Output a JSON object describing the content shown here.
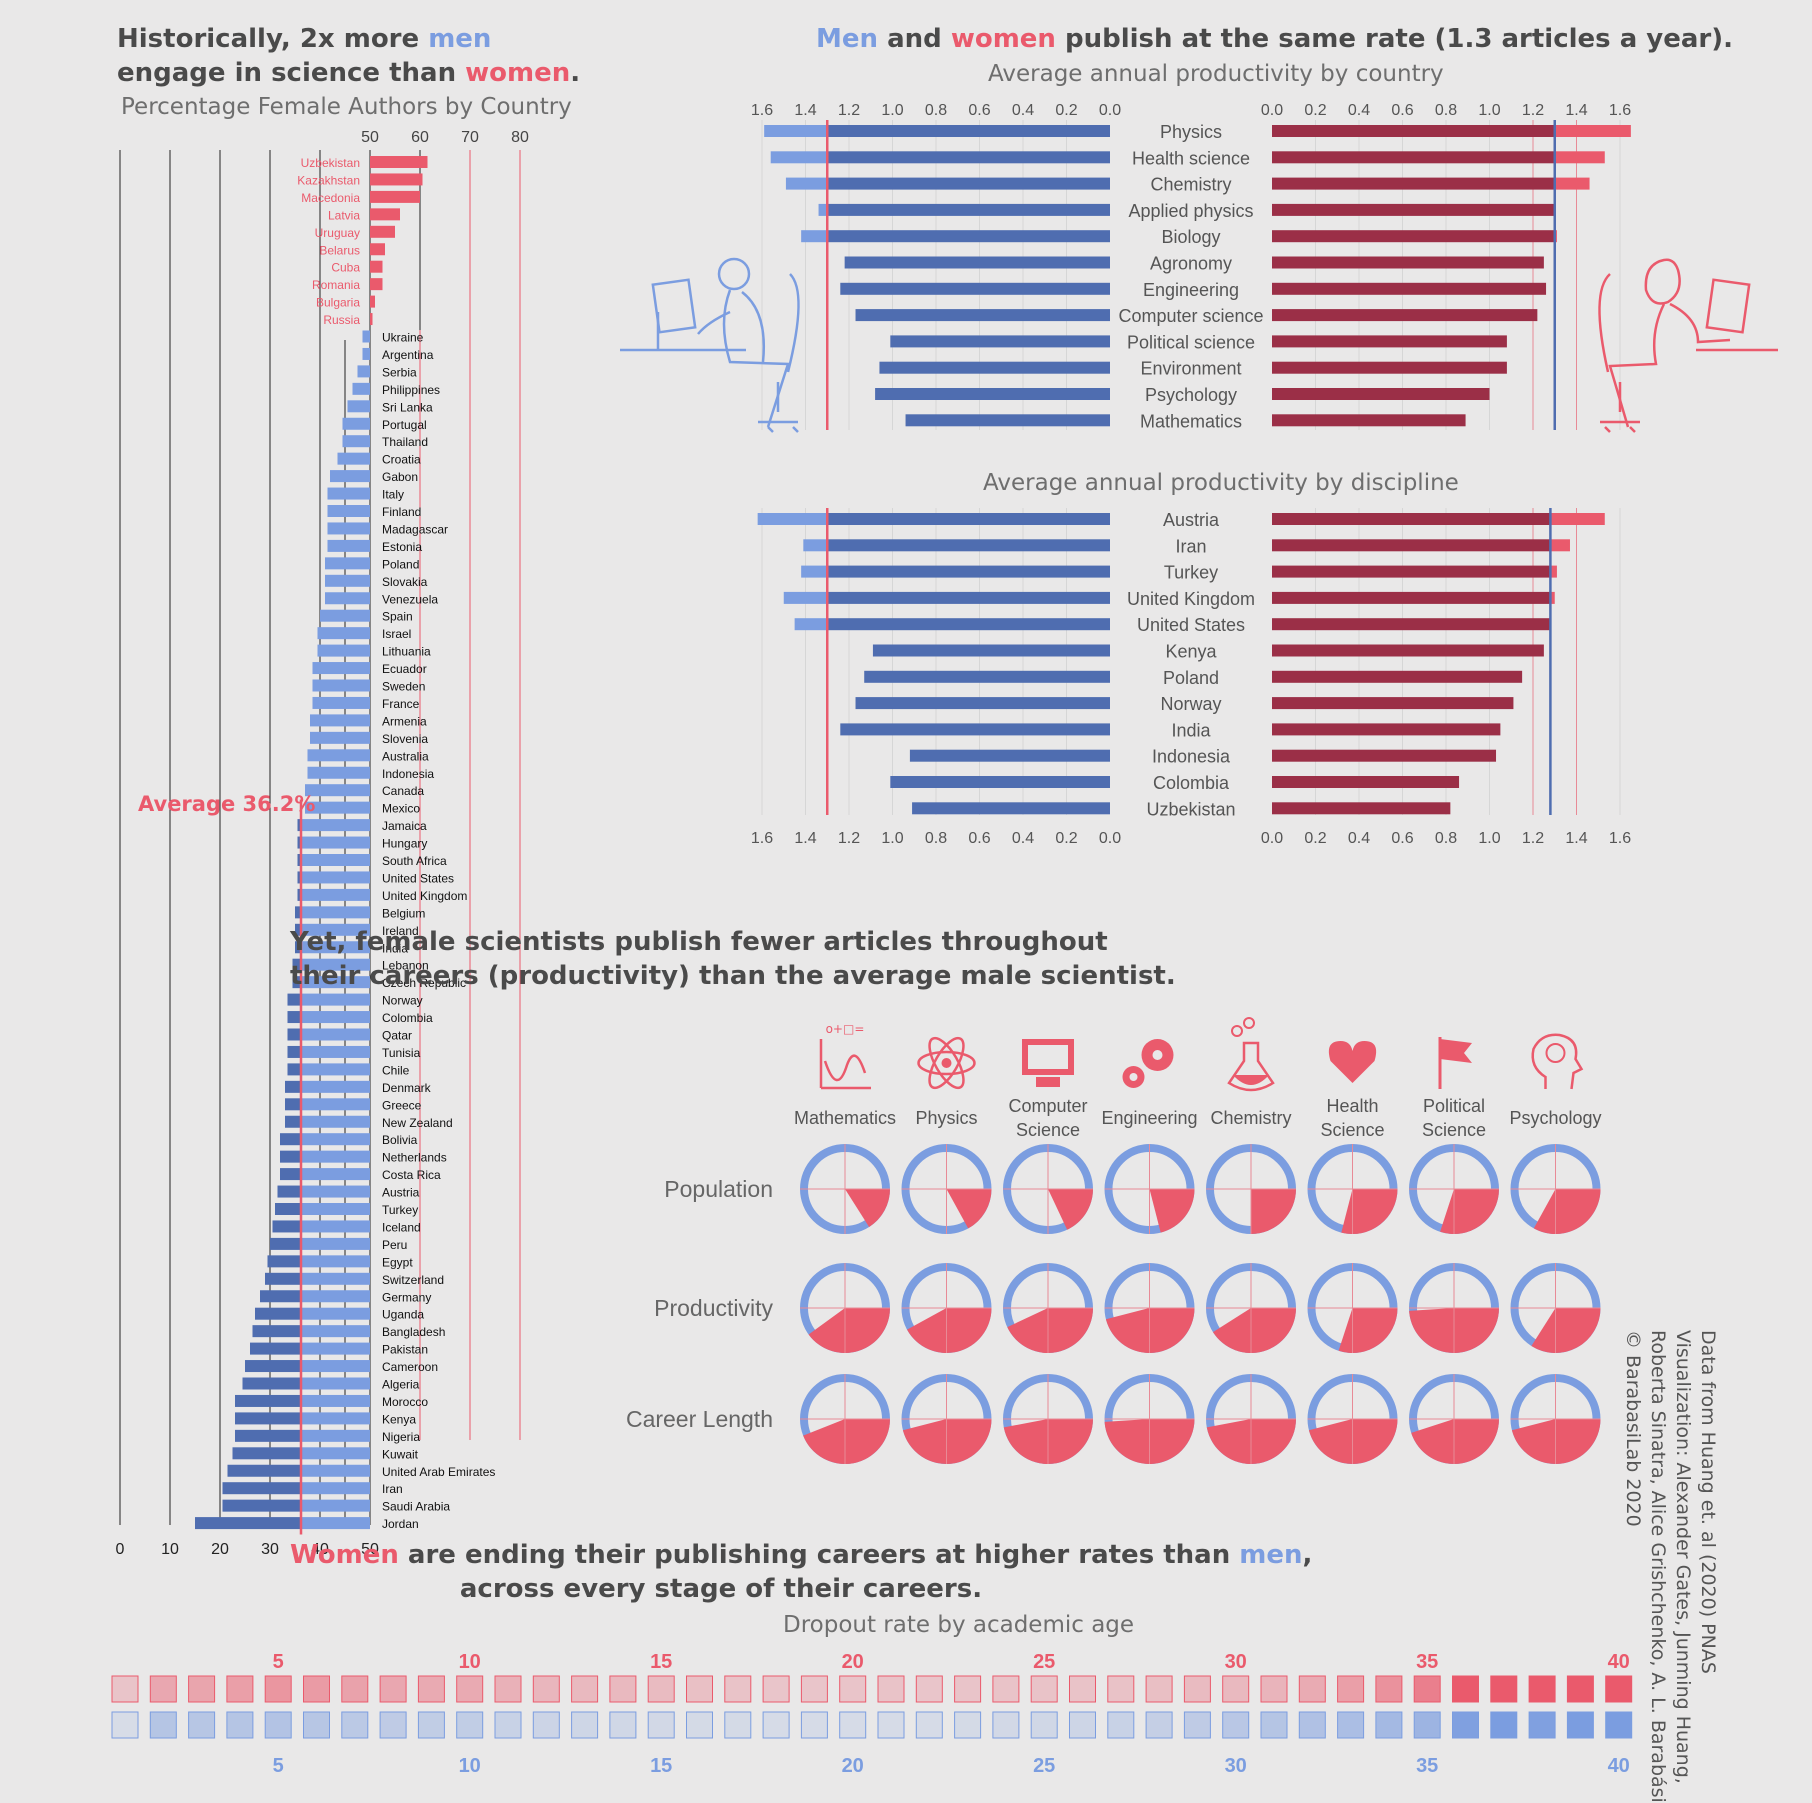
{
  "colors": {
    "men": "#7b9de0",
    "men_dark": "#4f6db0",
    "women": "#ea5a6c",
    "women_dark": "#9b2f47",
    "bg": "#e9e8e8",
    "text": "#4a4a4a"
  },
  "left_panel": {
    "headline_line1_pre": "Historically, 2x more ",
    "headline_men": "men",
    "headline_line2_pre": "engage in science than ",
    "headline_women": "women",
    "headline_period": ".",
    "subtitle": "Percentage Female Authors by Country",
    "average_label": "Average 36.2%"
  },
  "top_headline": {
    "men": "Men",
    "and": " and ",
    "women": "women",
    "rest": " publish at the same rate (1.3 articles a year)."
  },
  "middle_headline": {
    "line1": "Yet, female scientists publish fewer articles throughout",
    "line2": "their careers (productivity) than the average male scientist."
  },
  "bottom_headline": {
    "women": "Women",
    "rest1": " are ending their publishing careers at higher rates than ",
    "men": "men",
    "rest1_end": ",",
    "line2": "across every stage of their careers.",
    "subtitle": "Dropout rate by academic age"
  },
  "credits": [
    "Data from Huang et. al (2020) PNAS",
    "Visualization: Alexander Gates, Junming Huang,",
    "Roberta Sinatra, Alice Grishchenko, A. L. Barabási",
    "© BarabasiLab 2020"
  ],
  "chart_data": [
    {
      "type": "bar",
      "title": "Percentage Female Authors by Country",
      "orientation": "horizontal",
      "average": 36.2,
      "xticks_top": [
        50,
        60,
        70,
        80
      ],
      "xticks_bottom": [
        0,
        10,
        20,
        30,
        40,
        50
      ],
      "xlim": [
        0,
        80
      ],
      "categories": [
        "Uzbekistan",
        "Kazakhstan",
        "Macedonia",
        "Latvia",
        "Uruguay",
        "Belarus",
        "Cuba",
        "Romania",
        "Bulgaria",
        "Russia",
        "Ukraine",
        "Argentina",
        "Serbia",
        "Philippines",
        "Sri Lanka",
        "Portugal",
        "Thailand",
        "Croatia",
        "Gabon",
        "Italy",
        "Finland",
        "Madagascar",
        "Estonia",
        "Poland",
        "Slovakia",
        "Venezuela",
        "Spain",
        "Israel",
        "Lithuania",
        "Ecuador",
        "Sweden",
        "France",
        "Armenia",
        "Slovenia",
        "Australia",
        "Indonesia",
        "Canada",
        "Mexico",
        "Jamaica",
        "Hungary",
        "South Africa",
        "United States",
        "United Kingdom",
        "Belgium",
        "Ireland",
        "India",
        "Lebanon",
        "Czech Republic",
        "Norway",
        "Colombia",
        "Qatar",
        "Tunisia",
        "Chile",
        "Denmark",
        "Greece",
        "New Zealand",
        "Bolivia",
        "Netherlands",
        "Costa Rica",
        "Austria",
        "Turkey",
        "Iceland",
        "Peru",
        "Egypt",
        "Switzerland",
        "Germany",
        "Uganda",
        "Bangladesh",
        "Pakistan",
        "Cameroon",
        "Algeria",
        "Morocco",
        "Kenya",
        "Nigeria",
        "Kuwait",
        "United Arab Emirates",
        "Iran",
        "Saudi Arabia",
        "Jordan"
      ],
      "values": [
        61.5,
        60.5,
        60,
        56,
        55,
        53,
        52.5,
        52.5,
        51,
        50.5,
        48.5,
        48.5,
        47.5,
        46.5,
        45.5,
        44.5,
        44.5,
        43.5,
        42,
        41.5,
        41.5,
        41.5,
        41.5,
        41,
        41,
        41,
        40,
        39.5,
        39.5,
        38.5,
        38.5,
        38.5,
        38,
        38,
        37.5,
        37.5,
        37,
        37,
        35.5,
        35.5,
        35.5,
        35.5,
        35.5,
        35,
        35,
        35,
        34.5,
        34.5,
        33.5,
        33.5,
        33.5,
        33.5,
        33.5,
        33,
        33,
        33,
        32,
        32,
        32,
        31.5,
        31,
        30.5,
        30,
        29.5,
        29,
        28,
        27,
        26.5,
        26,
        25,
        24.5,
        23,
        23,
        23,
        22.5,
        21.5,
        20.5,
        20.5,
        15
      ]
    },
    {
      "type": "bar",
      "title": "Average annual productivity by country",
      "orientation": "horizontal-butterfly",
      "xticks": [
        0.0,
        0.2,
        0.4,
        0.6,
        0.8,
        1.0,
        1.2,
        1.4,
        1.6
      ],
      "xlim": [
        0,
        1.6
      ],
      "reference_men": 1.3,
      "reference_women": 1.3,
      "categories": [
        "Physics",
        "Health science",
        "Chemistry",
        "Applied physics",
        "Biology",
        "Agronomy",
        "Engineering",
        "Computer science",
        "Political science",
        "Environment",
        "Psychology",
        "Mathematics"
      ],
      "series": [
        {
          "name": "Men",
          "values": [
            1.59,
            1.56,
            1.49,
            1.34,
            1.42,
            1.22,
            1.24,
            1.17,
            1.01,
            1.06,
            1.08,
            0.94
          ]
        },
        {
          "name": "Women",
          "values": [
            1.65,
            1.53,
            1.46,
            1.3,
            1.31,
            1.25,
            1.26,
            1.22,
            1.08,
            1.08,
            1.0,
            0.89
          ]
        }
      ]
    },
    {
      "type": "bar",
      "title": "Average annual productivity by discipline",
      "orientation": "horizontal-butterfly",
      "xticks": [
        0.0,
        0.2,
        0.4,
        0.6,
        0.8,
        1.0,
        1.2,
        1.4,
        1.6
      ],
      "xlim": [
        0,
        1.6
      ],
      "reference_men": 1.3,
      "reference_women": 1.28,
      "categories": [
        "Austria",
        "Iran",
        "Turkey",
        "United Kingdom",
        "United States",
        "Kenya",
        "Poland",
        "Norway",
        "India",
        "Indonesia",
        "Colombia",
        "Uzbekistan"
      ],
      "series": [
        {
          "name": "Men",
          "values": [
            1.62,
            1.41,
            1.42,
            1.5,
            1.45,
            1.09,
            1.13,
            1.17,
            1.24,
            0.92,
            1.01,
            0.91
          ]
        },
        {
          "name": "Women",
          "values": [
            1.53,
            1.37,
            1.31,
            1.3,
            1.28,
            1.25,
            1.15,
            1.11,
            1.05,
            1.03,
            0.86,
            0.82
          ]
        }
      ]
    },
    {
      "type": "pie",
      "title": "",
      "disciplines": [
        "Mathematics",
        "Physics",
        "Computer Science",
        "Engineering",
        "Chemistry",
        "Health Science",
        "Political Science",
        "Psychology"
      ],
      "discipline_labels": [
        [
          "Mathematics"
        ],
        [
          "Physics"
        ],
        [
          "Computer",
          "Science"
        ],
        [
          "Engineering"
        ],
        [
          "Chemistry"
        ],
        [
          "Health",
          "Science"
        ],
        [
          "Political",
          "Science"
        ],
        [
          "Psychology"
        ]
      ],
      "discipline_icons": [
        "math-icon",
        "atom-icon",
        "computer-icon",
        "gears-icon",
        "flask-icon",
        "heart-icon",
        "flag-icon",
        "brain-icon"
      ],
      "rows": [
        {
          "name": "Population",
          "female_share": [
            0.16,
            0.17,
            0.18,
            0.21,
            0.25,
            0.29,
            0.3,
            0.33
          ]
        },
        {
          "name": "Productivity",
          "female_share": [
            0.4,
            0.42,
            0.43,
            0.46,
            0.41,
            0.3,
            0.49,
            0.34
          ]
        },
        {
          "name": "Career Length",
          "female_share": [
            0.44,
            0.46,
            0.47,
            0.49,
            0.47,
            0.46,
            0.45,
            0.46
          ]
        }
      ]
    },
    {
      "type": "heatmap",
      "title": "Dropout rate by academic age",
      "ticks": [
        5,
        10,
        15,
        20,
        25,
        30,
        35,
        40
      ],
      "ages": [
        1,
        2,
        3,
        4,
        5,
        6,
        7,
        8,
        9,
        10,
        11,
        12,
        13,
        14,
        15,
        16,
        17,
        18,
        19,
        20,
        21,
        22,
        23,
        24,
        25,
        26,
        27,
        28,
        29,
        30,
        31,
        32,
        33,
        34,
        35,
        36,
        37,
        38,
        39,
        40
      ],
      "series": [
        {
          "name": "Women",
          "intensity": [
            0.15,
            0.38,
            0.4,
            0.45,
            0.52,
            0.48,
            0.42,
            0.38,
            0.36,
            0.36,
            0.3,
            0.26,
            0.24,
            0.24,
            0.22,
            0.18,
            0.16,
            0.14,
            0.14,
            0.15,
            0.16,
            0.14,
            0.15,
            0.16,
            0.16,
            0.16,
            0.17,
            0.19,
            0.22,
            0.24,
            0.28,
            0.35,
            0.45,
            0.55,
            0.7,
            1.0,
            1.0,
            1.0,
            1.0,
            1.0
          ]
        },
        {
          "name": "Men",
          "intensity": [
            0.05,
            0.4,
            0.38,
            0.4,
            0.42,
            0.38,
            0.34,
            0.3,
            0.28,
            0.28,
            0.2,
            0.16,
            0.14,
            0.12,
            0.1,
            0.08,
            0.08,
            0.06,
            0.06,
            0.06,
            0.06,
            0.06,
            0.08,
            0.1,
            0.12,
            0.15,
            0.2,
            0.24,
            0.3,
            0.36,
            0.4,
            0.45,
            0.5,
            0.58,
            0.65,
            0.95,
            1.0,
            0.95,
            1.0,
            1.0
          ]
        }
      ]
    }
  ]
}
